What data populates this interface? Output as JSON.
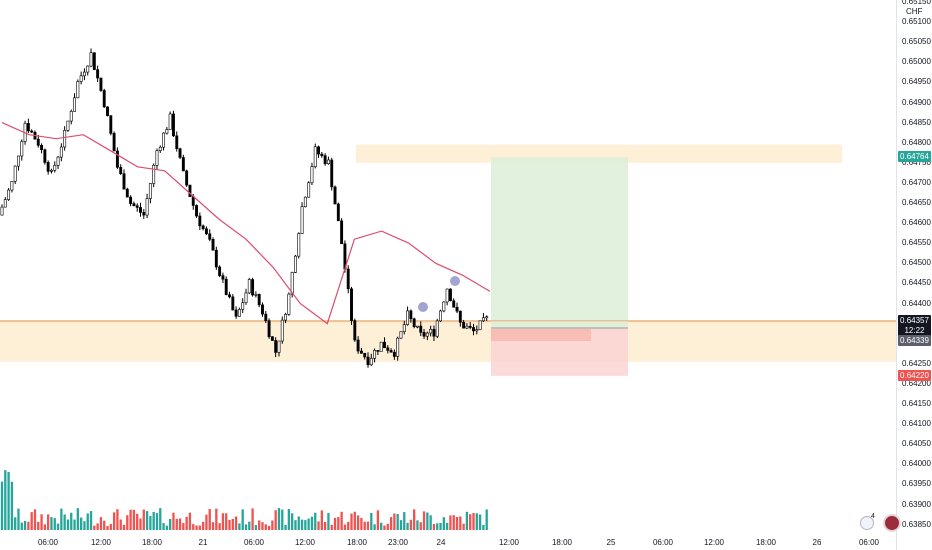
{
  "currency": "CHF",
  "price_ticks": [
    "0.65150",
    "0.65100",
    "0.65050",
    "0.65000",
    "0.64950",
    "0.64900",
    "0.64850",
    "0.64800",
    "0.64750",
    "0.64700",
    "0.64650",
    "0.64600",
    "0.64550",
    "0.64500",
    "0.64450",
    "0.64400",
    "0.64350",
    "0.64300",
    "0.64250",
    "0.64200",
    "0.64150",
    "0.64100",
    "0.64050",
    "0.64000",
    "0.63950",
    "0.63900",
    "0.63850"
  ],
  "price_labels": {
    "target": "0.64764",
    "last": "0.64357",
    "countdown": "12:22",
    "entry": "0.64339",
    "stop": "0.64220"
  },
  "time_labels": [
    "06:00",
    "12:00",
    "18:00",
    "21",
    "06:00",
    "12:00",
    "18:00",
    "23:00",
    "24",
    "12:00",
    "18:00",
    "25",
    "06:00",
    "12:00",
    "18:00",
    "26",
    "06:00"
  ],
  "corner_badge": "4",
  "colors": {
    "up": "#26a69a",
    "down": "#ef5350",
    "candle": "#000000",
    "ma": "#e04b6e",
    "zone": "#fde9c9",
    "profit": "#dcefd8",
    "loss": "#fbd4d3",
    "marker": "#8f95c9"
  },
  "chart_data": {
    "type": "candlestick",
    "symbol_currency": "CHF",
    "y_range": [
      0.6383,
      0.6516
    ],
    "price_series_close": [
      0.6462,
      0.647,
      0.6485,
      0.648,
      0.6472,
      0.6482,
      0.6495,
      0.6502,
      0.649,
      0.6474,
      0.6465,
      0.6462,
      0.6478,
      0.6486,
      0.6472,
      0.6462,
      0.6455,
      0.6445,
      0.6436,
      0.6445,
      0.6438,
      0.6428,
      0.6442,
      0.6464,
      0.6478,
      0.6475,
      0.6455,
      0.643,
      0.6426,
      0.643,
      0.6428,
      0.6437,
      0.6432,
      0.6433,
      0.6444,
      0.6435,
      0.6433,
      0.6436
    ],
    "moving_average": [
      0.6485,
      0.6482,
      0.6481,
      0.6482,
      0.6478,
      0.6474,
      0.6473,
      0.6467,
      0.6461,
      0.6456,
      0.6449,
      0.644,
      0.6435,
      0.6456,
      0.6458,
      0.6455,
      0.645,
      0.6447,
      0.6443
    ],
    "zones": {
      "resistance": [
        0.6475,
        0.64795
      ],
      "support": [
        0.64255,
        0.64355
      ]
    },
    "position": {
      "type": "long",
      "entry": 0.64339,
      "target": 0.64764,
      "stop": 0.6422
    },
    "last_price": 0.64357
  }
}
